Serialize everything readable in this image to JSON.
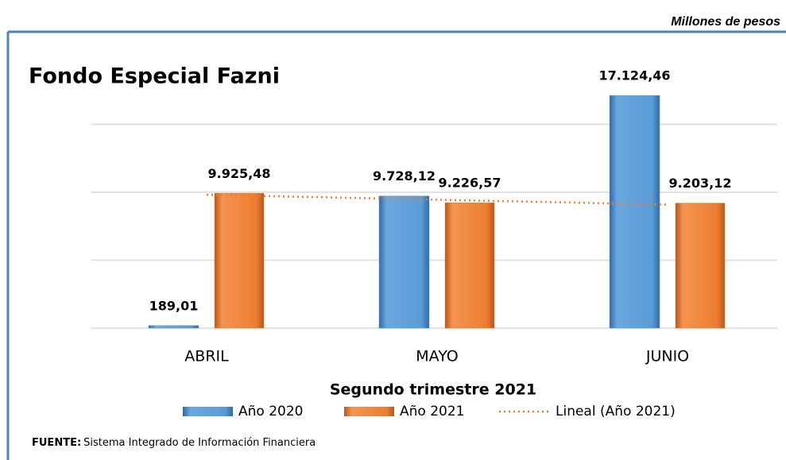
{
  "chart_data": {
    "type": "bar",
    "unit_note": "Millones de pesos",
    "title": "Fondo Especial Fazni",
    "xlabel": "Segundo trimestre 2021",
    "categories": [
      "ABRIL",
      "MAYO",
      "JUNIO"
    ],
    "series": [
      {
        "name": "Año 2020",
        "color": "#5b9bd5",
        "values": [
          189.01,
          9728.12,
          17124.46
        ],
        "value_labels": [
          "189,01",
          "9.728,12",
          "17.124,46"
        ]
      },
      {
        "name": "Año 2021",
        "color": "#ed7d31",
        "values": [
          9925.48,
          9226.57,
          9203.12
        ],
        "value_labels": [
          "9.925,48",
          "9.226,57",
          "9.203,12"
        ]
      }
    ],
    "trendline": {
      "name": "Lineal (Año 2021)",
      "series": 1,
      "color": "#ed7d31"
    },
    "ylim": [
      0,
      20000
    ],
    "yticks": [
      0,
      5000,
      10000,
      15000
    ],
    "grid": true,
    "legend": "bottom",
    "source_label": "FUENTE:",
    "source": "Sistema Integrado de Información Financiera"
  }
}
